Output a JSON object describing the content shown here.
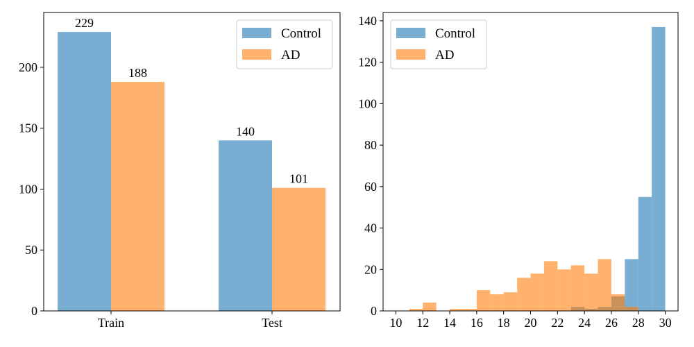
{
  "colors": {
    "control": "#1f77b4",
    "ad": "#ff7f0e",
    "axis": "#000000",
    "legend_border": "#cccccc"
  },
  "chart_data": [
    {
      "type": "bar",
      "title": "",
      "xlabel": "",
      "ylabel": "",
      "categories": [
        "Train",
        "Test"
      ],
      "series": [
        {
          "name": "Control",
          "values": [
            229,
            140
          ]
        },
        {
          "name": "AD",
          "values": [
            188,
            101
          ]
        }
      ],
      "data_labels": [
        [
          "229",
          "140"
        ],
        [
          "188",
          "101"
        ]
      ],
      "ylim": [
        0,
        245
      ],
      "yticks": [
        0,
        50,
        100,
        150,
        200
      ],
      "legend": {
        "entries": [
          "Control",
          "AD"
        ],
        "placement": "top-right"
      },
      "grid": false,
      "bar_alpha": 0.6
    },
    {
      "type": "histogram",
      "title": "",
      "xlabel": "",
      "ylabel": "",
      "xlim": [
        9.05,
        30.95
      ],
      "ylim": [
        0,
        144
      ],
      "xticks": [
        10,
        12,
        14,
        16,
        18,
        20,
        22,
        24,
        26,
        28,
        30
      ],
      "yticks": [
        0,
        20,
        40,
        60,
        80,
        100,
        120,
        140
      ],
      "series": [
        {
          "name": "Control",
          "bin_edges": [
            23,
            24,
            25,
            26,
            27,
            28,
            29,
            30
          ],
          "counts": [
            2,
            1,
            2,
            7,
            25,
            55,
            137
          ]
        },
        {
          "name": "AD",
          "bin_edges": [
            10,
            11,
            12,
            13,
            14,
            15,
            16,
            17,
            18,
            19,
            20,
            21,
            22,
            23,
            24,
            25,
            26,
            27,
            28
          ],
          "counts": [
            0,
            1,
            4,
            0,
            1,
            1,
            10,
            8,
            9,
            16,
            18,
            24,
            20,
            22,
            18,
            25,
            8,
            2
          ]
        }
      ],
      "legend": {
        "entries": [
          "Control",
          "AD"
        ],
        "placement": "top-left"
      },
      "grid": false,
      "bar_alpha": 0.6
    }
  ]
}
